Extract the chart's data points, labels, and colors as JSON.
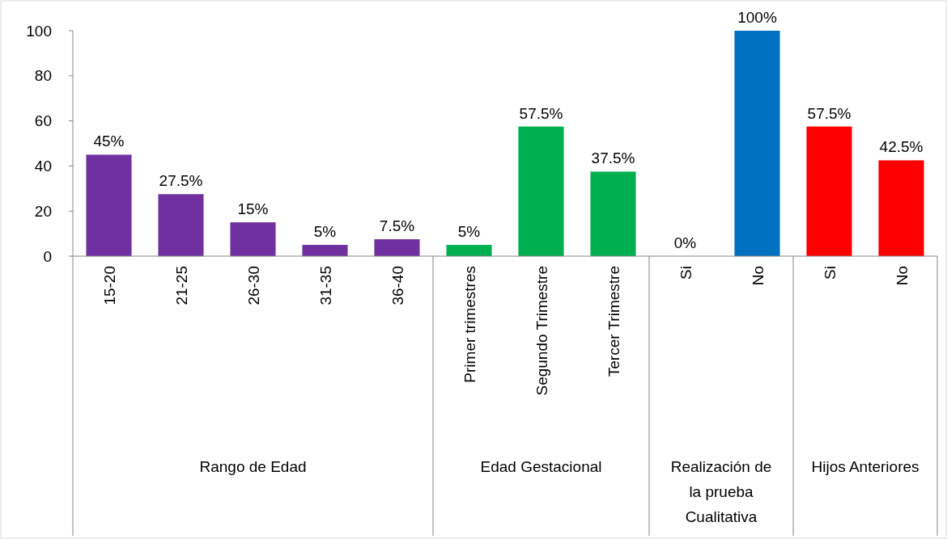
{
  "chart_data": {
    "type": "bar",
    "categories": [
      "15-20",
      "21-25",
      "26-30",
      "31-35",
      "36-40",
      "Primer trimestres",
      "Segundo Trimestre",
      "Tercer Trimestre",
      "Si",
      "No",
      "Si",
      "No"
    ],
    "values": [
      45,
      27.5,
      15,
      5,
      7.5,
      5,
      57.5,
      37.5,
      0,
      100,
      57.5,
      42.5
    ],
    "colors": [
      "#7030a0",
      "#7030a0",
      "#7030a0",
      "#7030a0",
      "#7030a0",
      "#00b050",
      "#00b050",
      "#00b050",
      "#0070c0",
      "#0070c0",
      "#ff0000",
      "#ff0000"
    ],
    "value_labels": [
      "45%",
      "27.5%",
      "15%",
      "5%",
      "7.5%",
      "5%",
      "57.5%",
      "37.5%",
      "0%",
      "100%",
      "57.5%",
      "42.5%"
    ],
    "annotations": [
      "Rango de Edad",
      "Edad Gestacional",
      "Realización de la prueba Cualitativa",
      "Hijos Anteriores"
    ],
    "ylim": [
      0,
      100
    ],
    "yticks": [
      0,
      20,
      40,
      60,
      80,
      100
    ],
    "grid": false
  }
}
